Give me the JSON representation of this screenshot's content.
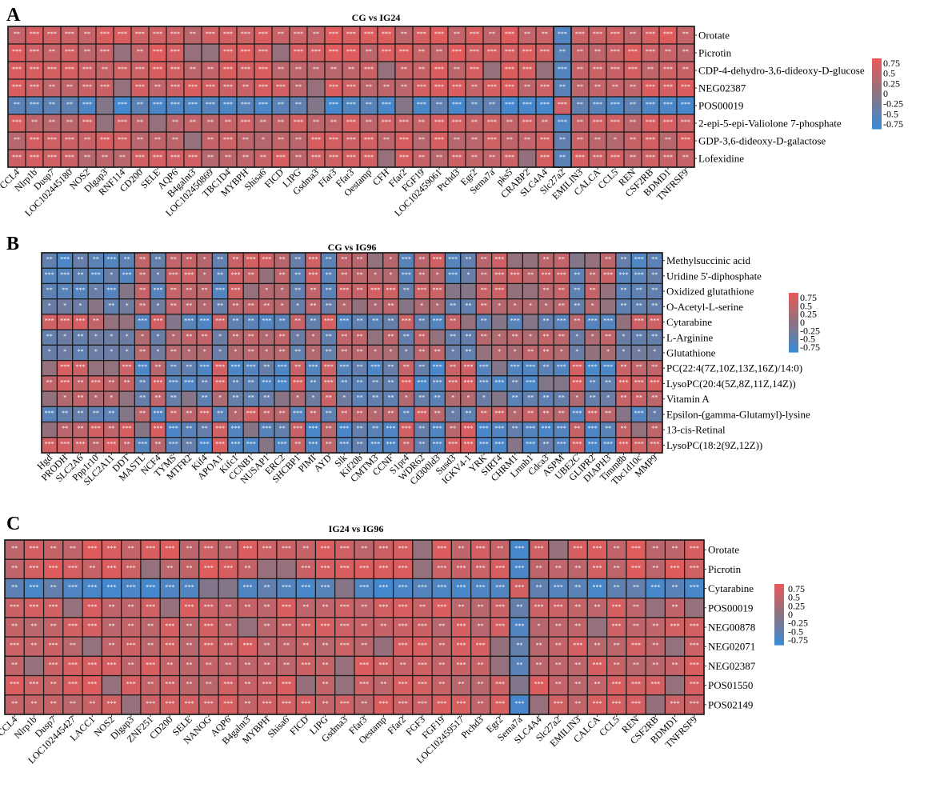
{
  "colors": {
    "high": "#e65a5a",
    "mid": "#8c7380",
    "low": "#3f8ad4",
    "border": "#1a1a1a"
  },
  "chart_data": [
    {
      "type": "heatmap",
      "panel": "A",
      "title": "CG vs IG24",
      "x_labels": [
        "CCL4",
        "Nlrp1b",
        "Dusp7",
        "LOC102445180",
        "NOS2",
        "Dlgap3",
        "RNF114",
        "CD200",
        "SELE",
        "AQP6",
        "B4galnt3",
        "LOC102450869",
        "TBC1D4",
        "MYBPH",
        "Shisa6",
        "FICD",
        "LIPG",
        "Gsdma3",
        "Ffar3",
        "Ffar3",
        "Oestamp",
        "CFH",
        "Ffar2",
        "FGF19",
        "LOC102459061",
        "Ptchd3",
        "Egr2",
        "Sema7a",
        "pks5",
        "CRABP2",
        "SLC4A4",
        "Slc27a2",
        "EMILIN3",
        "CALCA",
        "CCL5",
        "REN",
        "CSF2RB",
        "BDMD1",
        "TNFRSF9"
      ],
      "y_labels": [
        "Orotate",
        "Picrotin",
        "CDP-4-dehydro-3,6-dideoxy-D-glucose",
        "NEG02387",
        "POS00019",
        "2-epi-5-epi-Valiolone 7-phosphate",
        "GDP-3,6-dideoxy-D-galactose",
        "Lofexidine"
      ],
      "colorbar_ticks": [
        "0.75",
        "0.5",
        "0.25",
        "0",
        "-0.25",
        "-0.5",
        "-0.75"
      ],
      "value_range": [
        -0.9,
        0.9
      ],
      "pattern": "rows mostly positive (red); row POS00019 mostly negative (blue) with inverted column Slc27a2",
      "col_sign": [
        1,
        1,
        1,
        1,
        1,
        1,
        1,
        1,
        1,
        1,
        1,
        1,
        1,
        1,
        1,
        1,
        1,
        1,
        1,
        1,
        1,
        1,
        1,
        1,
        1,
        1,
        1,
        1,
        1,
        1,
        1,
        -1,
        1,
        1,
        1,
        1,
        1,
        1,
        1
      ],
      "row_sign": [
        1,
        1,
        1,
        1,
        -1,
        1,
        1,
        1
      ],
      "row_scale": [
        0.85,
        0.85,
        0.8,
        0.8,
        0.85,
        0.75,
        0.75,
        0.75
      ]
    },
    {
      "type": "heatmap",
      "panel": "B",
      "title": "CG vs IG96",
      "x_labels": [
        "Hgd",
        "PRODH",
        "SLC2A6",
        "Ppp1r10",
        "SLC2A11",
        "DDT",
        "MASTL",
        "NCF4",
        "TYMS",
        "MTFR2",
        "Kif4",
        "APOA1",
        "Kifc1",
        "CCNB1",
        "NUSAP1",
        "ERC2",
        "SHCBP1",
        "PIMI",
        "AYD",
        "Slk",
        "Kif20b",
        "CMTM3",
        "CCNF",
        "S1pr4",
        "WDR62",
        "Cd300ld3",
        "Susd3",
        "IGKV4-1",
        "YRK",
        "SIRT4",
        "CHRM1",
        "Lmnb1",
        "Cdca3",
        "ASPM",
        "UBE2C",
        "GLIPR2",
        "DIAPH3",
        "Timm8b",
        "Tbc1d10c",
        "MMP9"
      ],
      "y_labels": [
        "Methylsuccinic acid",
        "Uridine 5'-diphosphate",
        "Oxidized glutathione",
        "O-Acetyl-L-serine",
        "Cytarabine",
        "L-Arginine",
        "Glutathione",
        "PC(22:4(7Z,10Z,13Z,16Z)/14:0)",
        "LysoPC(20:4(5Z,8Z,11Z,14Z))",
        "Vitamin A",
        "Epsilon-(gamma-Glutamyl)-lysine",
        "13-cis-Retinal",
        "LysoPC(18:2(9Z,12Z))"
      ],
      "colorbar_ticks": [
        "0.75",
        "0.5",
        "0.25",
        "0",
        "-0.25",
        "-0.5",
        "-0.75"
      ],
      "value_range": [
        -0.9,
        0.9
      ],
      "pattern": "upper metabolite rows anti-correlated with lipid/retinal rows; column signs flip between gene groups",
      "col_sign": [
        -1,
        -1,
        -1,
        -1,
        -1,
        -1,
        1,
        -1,
        1,
        1,
        1,
        -1,
        1,
        1,
        1,
        1,
        -1,
        1,
        -1,
        1,
        1,
        1,
        1,
        -1,
        1,
        1,
        -1,
        -1,
        1,
        1,
        1,
        1,
        1,
        1,
        -1,
        1,
        1,
        -1,
        -1,
        -1
      ],
      "row_sign": [
        1,
        1,
        1,
        1,
        -1,
        1,
        1,
        -1,
        -1,
        -1,
        1,
        -1,
        -1
      ],
      "row_scale": [
        0.75,
        0.7,
        0.7,
        0.55,
        0.75,
        0.55,
        0.5,
        0.8,
        0.8,
        0.6,
        0.7,
        0.8,
        0.8
      ]
    },
    {
      "type": "heatmap",
      "panel": "C",
      "title": "IG24 vs IG96",
      "x_labels": [
        "CCL4",
        "Nlrp1b",
        "Dusp7",
        "LOC102445427",
        "LACC1",
        "NOS2",
        "Dlgap3",
        "ZNF251",
        "CD200",
        "SELE",
        "NANOG",
        "AQP6",
        "B4galnt3",
        "MYBPH",
        "Shisa6",
        "FICD",
        "LIPG",
        "Gsdma3",
        "Ffar3",
        "Oestamp",
        "Ffar2",
        "FGF3",
        "FGF19",
        "LOC102459517",
        "Ptchd3",
        "Egr2",
        "Sema7a",
        "SLC4A4",
        "Slc27a2",
        "EMILIN3",
        "CALCA",
        "CCL5",
        "REN",
        "CSF2RB",
        "BDMD1",
        "TNFRSF9"
      ],
      "y_labels": [
        "Orotate",
        "Picrotin",
        "Cytarabine",
        "POS00019",
        "NEG00878",
        "NEG02071",
        "NEG02387",
        "POS01550",
        "POS02149"
      ],
      "colorbar_ticks": [
        "0.75",
        "0.5",
        "0.25",
        "0",
        "-0.25",
        "-0.5",
        "-0.75"
      ],
      "value_range": [
        -0.9,
        0.9
      ],
      "pattern": "all rows positive except Cytarabine (negative); column Sema7a inverted",
      "col_sign": [
        1,
        1,
        1,
        1,
        1,
        1,
        1,
        1,
        1,
        1,
        1,
        1,
        1,
        1,
        1,
        1,
        1,
        1,
        1,
        1,
        1,
        1,
        1,
        1,
        1,
        1,
        -1,
        1,
        1,
        1,
        1,
        1,
        1,
        1,
        1,
        1
      ],
      "row_sign": [
        1,
        1,
        -1,
        1,
        1,
        1,
        1,
        1,
        1
      ],
      "row_scale": [
        0.85,
        0.85,
        0.85,
        0.8,
        0.75,
        0.75,
        0.8,
        0.8,
        0.8
      ]
    }
  ]
}
